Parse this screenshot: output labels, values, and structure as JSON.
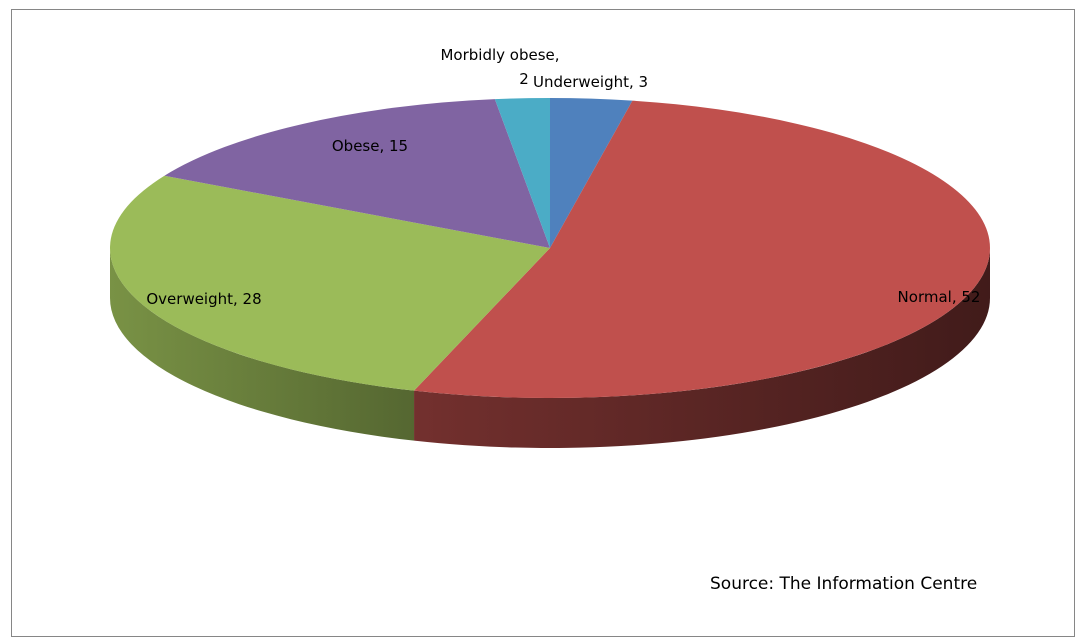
{
  "chart_data": {
    "type": "pie",
    "style": "3d",
    "categories": [
      "Underweight",
      "Normal",
      "Overweight",
      "Obese",
      "Morbidly obese"
    ],
    "values": [
      3,
      52,
      28,
      15,
      2
    ],
    "colors": [
      "#4f81bd",
      "#c0504d",
      "#9bbb59",
      "#8064a2",
      "#4bacc6"
    ],
    "data_labels": [
      "Underweight, 3",
      "Normal, 52",
      "Overweight, 28",
      "Obese, 15",
      "Morbidly obese, 2"
    ],
    "legend": "none",
    "source_note": "Source: The Information Centre"
  }
}
